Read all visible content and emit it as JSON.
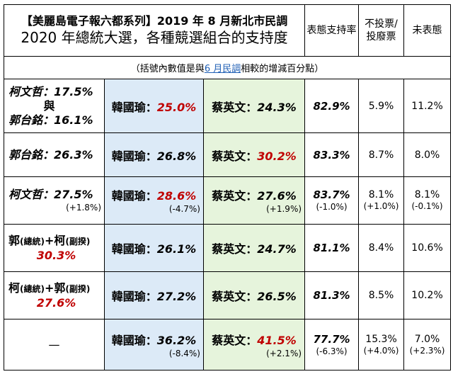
{
  "header": {
    "title_line1": "【美麗島電子報六都系列】2019 年 8 月新北市民調",
    "title_line2": "2020 年總統大選，各種競選組合的支持度",
    "col_support": "表態支持率",
    "col_novote": "不投票/投廢票",
    "col_undecided": "未表態"
  },
  "note": {
    "prefix": "（括號內數值是與",
    "highlight": "6 月民調",
    "suffix": "相較的增減百分點）"
  },
  "rows": [
    {
      "cand_lines": [
        "柯文哲：17.5%",
        "與",
        "郭台銘：16.1%"
      ],
      "han_label": "韓國瑜：",
      "han_value": "25.0%",
      "han_change": "",
      "tsai_label": "蔡英文：",
      "tsai_value": "24.3%",
      "tsai_change": "",
      "support": "82.9%",
      "support_change": "",
      "novote": "5.9%",
      "novote_change": "",
      "undecided": "11.2%",
      "undecided_change": ""
    },
    {
      "cand_lines": [
        "郭台銘：26.3%"
      ],
      "han_label": "韓國瑜：",
      "han_value": "26.8%",
      "han_change": "",
      "tsai_label": "蔡英文：",
      "tsai_value": "30.2%",
      "tsai_change": "",
      "support": "83.3%",
      "support_change": "",
      "novote": "8.7%",
      "novote_change": "",
      "undecided": "8.0%",
      "undecided_change": ""
    },
    {
      "cand_lines": [
        "柯文哲：27.5%"
      ],
      "cand_change": "(+1.8%)",
      "han_label": "韓國瑜：",
      "han_value": "28.6%",
      "han_change": "(-4.7%)",
      "tsai_label": "蔡英文：",
      "tsai_value": "27.6%",
      "tsai_change": "(+1.9%)",
      "support": "83.7%",
      "support_change": "(-1.0%)",
      "novote": "8.1%",
      "novote_change": "(+1.0%)",
      "undecided": "8.1%",
      "undecided_change": "(-0.1%)"
    },
    {
      "combo_a": "郭",
      "combo_a_role": "(總統)",
      "combo_b": "+柯",
      "combo_b_role": "(副揆)",
      "combo_value": "30.3%",
      "han_label": "韓國瑜：",
      "han_value": "26.1%",
      "han_change": "",
      "tsai_label": "蔡英文：",
      "tsai_value": "24.7%",
      "tsai_change": "",
      "support": "81.1%",
      "support_change": "",
      "novote": "8.4%",
      "novote_change": "",
      "undecided": "10.6%",
      "undecided_change": ""
    },
    {
      "combo_a": "柯",
      "combo_a_role": "(總統)",
      "combo_b": "+郭",
      "combo_b_role": "(副揆)",
      "combo_value": "27.6%",
      "han_label": "韓國瑜：",
      "han_value": "27.2%",
      "han_change": "",
      "tsai_label": "蔡英文：",
      "tsai_value": "26.5%",
      "tsai_change": "",
      "support": "81.3%",
      "support_change": "",
      "novote": "8.5%",
      "novote_change": "",
      "undecided": "10.2%",
      "undecided_change": ""
    },
    {
      "cand_lines": [
        "—"
      ],
      "han_label": "韓國瑜：",
      "han_value": "36.2%",
      "han_change": "(-8.4%)",
      "tsai_label": "蔡英文：",
      "tsai_value": "41.5%",
      "tsai_change": "(+2.1%)",
      "support": "77.7%",
      "support_change": "(-6.3%)",
      "novote": "15.3%",
      "novote_change": "(+4.0%)",
      "undecided": "7.0%",
      "undecided_change": "(+2.3%)"
    }
  ],
  "colors": {
    "red": "#c00000",
    "blue_col": "#dceaf7",
    "green_col": "#e6f4dc",
    "link": "#1f5fb5"
  }
}
